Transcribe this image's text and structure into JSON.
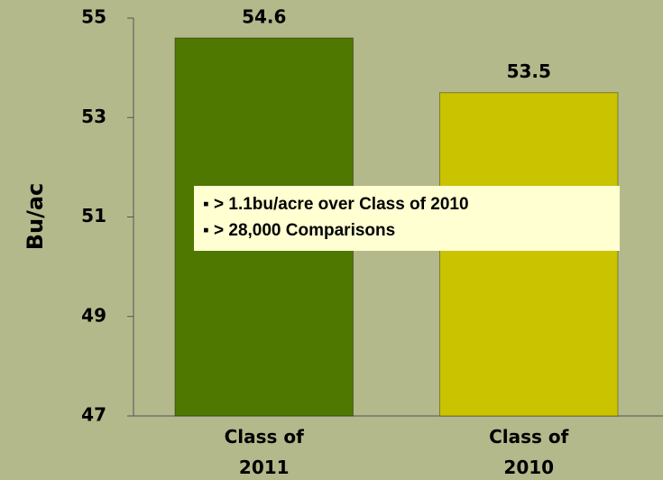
{
  "chart_data": {
    "type": "bar",
    "y_label": "Bu/ac",
    "categories": [
      "Class of\n2011",
      "Class of\n2010"
    ],
    "values": [
      54.6,
      53.5
    ],
    "colors": [
      "#4f7800",
      "#c9c300"
    ],
    "ylim": [
      47,
      55
    ],
    "yticks": [
      47,
      49,
      51,
      53,
      55
    ],
    "annotations": [
      "> 1.1bu/acre over Class of 2010",
      "> 28,000 Comparisons"
    ]
  }
}
